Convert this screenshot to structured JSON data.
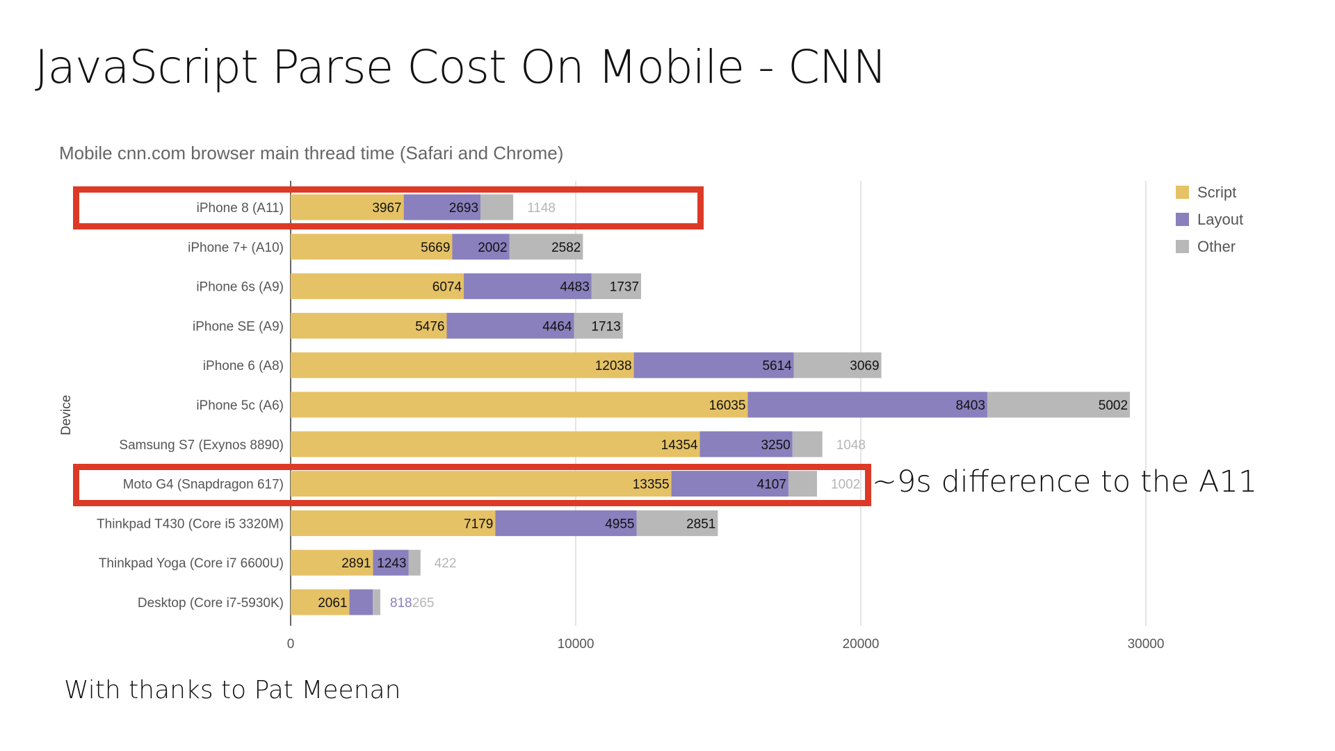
{
  "slide": {
    "title": "JavaScript Parse Cost On Mobile - CNN",
    "annotation": "~9s difference to the A11",
    "footer": "With thanks to Pat Meenan",
    "highlighted_rows": [
      "iPhone 8 (A11)",
      "Moto G4 (Snapdragon 617)"
    ],
    "highlight_color": "#dc3a26"
  },
  "chart_data": {
    "type": "bar",
    "orientation": "horizontal",
    "stacked": true,
    "title": "Mobile cnn.com browser main thread time (Safari and Chrome)",
    "ylabel": "Device",
    "xlabel": "",
    "xlim": [
      0,
      35000
    ],
    "xticks": [
      0,
      10000,
      20000,
      30000
    ],
    "grid": true,
    "legend_position": "right",
    "categories": [
      "iPhone 8 (A11)",
      "iPhone 7+ (A10)",
      "iPhone 6s (A9)",
      "iPhone SE (A9)",
      "iPhone 6 (A8)",
      "iPhone 5c (A6)",
      "Samsung S7 (Exynos 8890)",
      "Moto G4 (Snapdragon 617)",
      "Thinkpad T430 (Core i5 3320M)",
      "Thinkpad Yoga (Core i7 6600U)",
      "Desktop (Core i7-5930K)"
    ],
    "series": [
      {
        "name": "Script",
        "color": "#e6c266",
        "values": [
          3967,
          5669,
          6074,
          5476,
          12038,
          16035,
          14354,
          13355,
          7179,
          2891,
          2061
        ]
      },
      {
        "name": "Layout",
        "color": "#8980bd",
        "values": [
          2693,
          2002,
          4483,
          4464,
          5614,
          8403,
          3250,
          4107,
          4955,
          1243,
          818
        ]
      },
      {
        "name": "Other",
        "color": "#b8b8b8",
        "values": [
          1148,
          2582,
          1737,
          1713,
          3069,
          5002,
          1048,
          1002,
          2851,
          422,
          265
        ]
      }
    ]
  }
}
